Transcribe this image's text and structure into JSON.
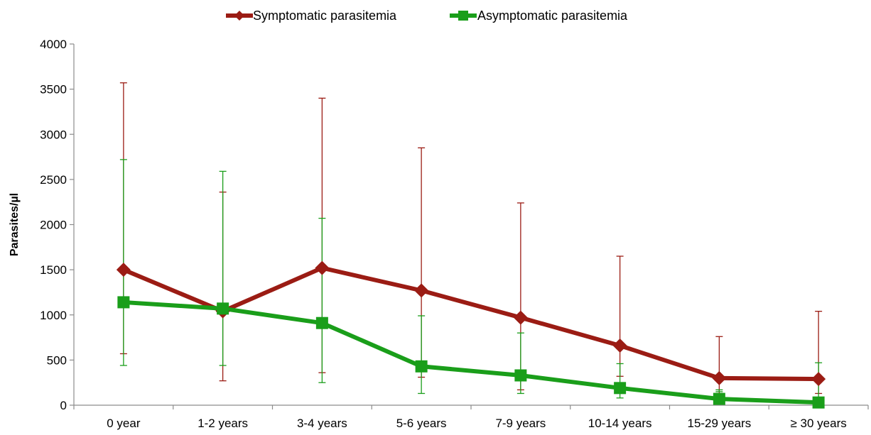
{
  "chart_data": {
    "type": "line",
    "title": "",
    "xlabel": "",
    "ylabel": "Parasites/µl",
    "ylim": [
      0,
      4000
    ],
    "yticks": [
      0,
      500,
      1000,
      1500,
      2000,
      2500,
      3000,
      3500,
      4000
    ],
    "grid": false,
    "legend_position": "top-center",
    "categories": [
      "0 year",
      "1-2 years",
      "3-4 years",
      "5-6 years",
      "7-9 years",
      "10-14 years",
      "15-29 years",
      "≥ 30 years"
    ],
    "series": [
      {
        "name": "Symptomatic parasitemia",
        "color": "#9B1C14",
        "marker": "diamond",
        "values": [
          1500,
          1040,
          1520,
          1270,
          970,
          660,
          300,
          290
        ],
        "error_low": [
          570,
          270,
          360,
          310,
          170,
          320,
          130,
          130
        ],
        "error_high": [
          3570,
          2360,
          3400,
          2850,
          2240,
          1650,
          760,
          1040
        ]
      },
      {
        "name": "Asymptomatic parasitemia",
        "color": "#1A9E1A",
        "marker": "square",
        "values": [
          1140,
          1070,
          910,
          430,
          330,
          190,
          70,
          30
        ],
        "error_low": [
          440,
          440,
          250,
          130,
          130,
          80,
          170,
          0
        ],
        "error_high": [
          2720,
          2590,
          2070,
          990,
          800,
          460,
          150,
          470
        ]
      }
    ]
  }
}
